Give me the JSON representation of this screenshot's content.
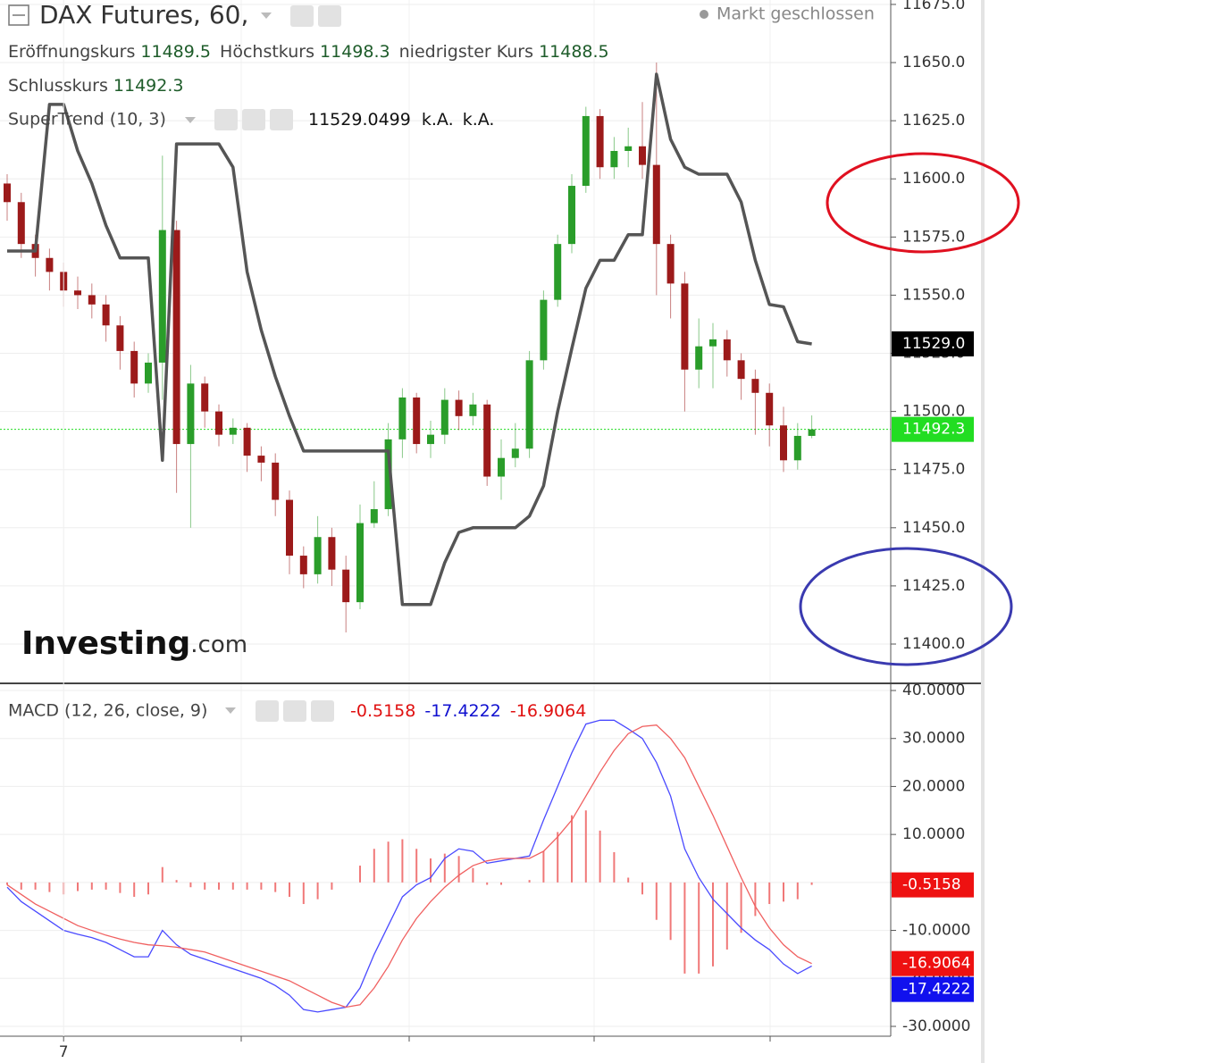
{
  "chart_data": [
    {
      "type": "candlestick",
      "title": "DAX Futures, 60,",
      "status": "Markt geschlossen",
      "ohlc_labels": [
        "Eröffnungskurs",
        "Höchstkurs",
        "niedrigster Kurs",
        "Schlusskurs"
      ],
      "categories": [
        null,
        null,
        null,
        null,
        "7",
        null,
        null,
        null,
        null,
        null,
        null,
        null,
        null,
        null,
        null,
        null,
        null,
        null,
        null,
        null,
        null,
        null,
        null,
        null,
        null,
        null,
        null,
        null,
        null,
        null,
        null,
        null,
        null,
        null,
        null,
        null,
        null,
        null,
        null,
        null,
        null,
        null,
        null,
        null,
        null,
        null,
        null,
        null,
        null,
        null,
        null,
        null,
        null,
        null,
        null,
        null,
        null,
        null
      ],
      "open": [
        11598,
        11590,
        11572,
        11566,
        11560,
        11552,
        11550,
        11546,
        11537,
        11526,
        11512,
        11521,
        11578,
        11486,
        11512,
        11500,
        11490,
        11493,
        11481,
        11478,
        11462,
        11438,
        11430,
        11446,
        11432,
        11418,
        11452,
        11458,
        11488,
        11506,
        11486,
        11490,
        11505,
        11498,
        11503,
        11472,
        11480,
        11484,
        11522,
        11548,
        11572,
        11597,
        11627,
        11605,
        11612,
        11614,
        11606,
        11572,
        11555,
        11518,
        11528,
        11531,
        11522,
        11514,
        11508,
        11494,
        11479,
        11489.5
      ],
      "high": [
        11602,
        11594,
        11576,
        11570,
        11564,
        11558,
        11555,
        11550,
        11541,
        11530,
        11525,
        11610,
        11582,
        11520,
        11515,
        11503,
        11497,
        11495,
        11485,
        11482,
        11466,
        11442,
        11455,
        11450,
        11438,
        11460,
        11470,
        11495,
        11510,
        11508,
        11496,
        11510,
        11509,
        11508,
        11505,
        11488,
        11495,
        11526,
        11552,
        11576,
        11602,
        11631,
        11630,
        11618,
        11622,
        11633,
        11650,
        11576,
        11560,
        11540,
        11538,
        11535,
        11525,
        11518,
        11512,
        11502,
        11495,
        11498.3
      ],
      "low": [
        11582,
        11566,
        11558,
        11552,
        11545,
        11544,
        11540,
        11530,
        11518,
        11506,
        11508,
        11505,
        11465,
        11450,
        11493,
        11485,
        11486,
        11474,
        11470,
        11455,
        11430,
        11424,
        11426,
        11425,
        11405,
        11415,
        11450,
        11455,
        11480,
        11482,
        11480,
        11486,
        11492,
        11494,
        11468,
        11462,
        11476,
        11480,
        11518,
        11545,
        11568,
        11594,
        11600,
        11600,
        11605,
        11600,
        11550,
        11540,
        11500,
        11510,
        11510,
        11515,
        11505,
        11490,
        11485,
        11474,
        11475,
        11488.5
      ],
      "close": [
        11590,
        11572,
        11566,
        11560,
        11552,
        11550,
        11546,
        11537,
        11526,
        11512,
        11521,
        11578,
        11486,
        11512,
        11500,
        11490,
        11493,
        11481,
        11478,
        11462,
        11438,
        11430,
        11446,
        11432,
        11418,
        11452,
        11458,
        11488,
        11506,
        11486,
        11490,
        11505,
        11498,
        11503,
        11472,
        11480,
        11484,
        11522,
        11548,
        11572,
        11597,
        11627,
        11605,
        11612,
        11614,
        11606,
        11572,
        11555,
        11518,
        11528,
        11531,
        11522,
        11514,
        11508,
        11494,
        11479,
        11489.5,
        11492.3
      ],
      "up_color": "#2a9d2a",
      "down_color": "#9c1a1a",
      "close_line_color": "#22dd22",
      "ylim": [
        11383.1,
        11676.9
      ],
      "yticks": [
        {
          "value": 11400,
          "label": "11400.0"
        },
        {
          "value": 11425,
          "label": "11425.0"
        },
        {
          "value": 11450,
          "label": "11450.0"
        },
        {
          "value": 11475,
          "label": "11475.0"
        },
        {
          "value": 11500,
          "label": "11500.0"
        },
        {
          "value": 11525,
          "label": "11525.0"
        },
        {
          "value": 11550,
          "label": "11550.0"
        },
        {
          "value": 11575,
          "label": "11575.0"
        },
        {
          "value": 11600,
          "label": "11600.0"
        },
        {
          "value": 11625,
          "label": "11625.0"
        },
        {
          "value": 11650,
          "label": "11650.0"
        },
        {
          "value": 11675,
          "label": "11675.0"
        }
      ],
      "grid": true,
      "overlay": {
        "type": "line",
        "name": "SuperTrend (10, 3)",
        "color": "#555555",
        "values": [
          11569,
          11569,
          11569,
          11632,
          11632,
          11612,
          11598,
          11580,
          11566,
          11566,
          11566,
          11479,
          11615,
          11615,
          11615,
          11615,
          11605,
          11560,
          11535,
          11515,
          11498,
          11483,
          11483,
          11483,
          11483,
          11483,
          11483,
          11483,
          11417,
          11417,
          11417,
          11435,
          11448,
          11450,
          11450,
          11450,
          11450,
          11455,
          11468,
          11500,
          11527,
          11553,
          11565,
          11565,
          11576,
          11576,
          11645,
          11617,
          11605,
          11602,
          11602,
          11602,
          11590,
          11565,
          11546,
          11545,
          11530,
          11529.0499
        ],
        "last_label": "11529.0",
        "extra": [
          "k.A.",
          "k.A."
        ]
      },
      "watermark": "Investing",
      "watermark_suffix": ".com"
    },
    {
      "type": "macd",
      "title": "MACD (12, 26, close, 9)",
      "ylim": [
        -32.05,
        41.49
      ],
      "yticks": [
        {
          "value": 40,
          "label": "40.0000"
        },
        {
          "value": 30,
          "label": "30.0000"
        },
        {
          "value": 20,
          "label": "20.0000"
        },
        {
          "value": 10,
          "label": "10.0000"
        },
        {
          "value": 0,
          "label": "0.0000"
        },
        {
          "value": -10,
          "label": "-10.0000"
        },
        {
          "value": -20,
          "label": "-20.0000"
        },
        {
          "value": -30,
          "label": "-30.0000"
        }
      ],
      "grid": true,
      "series": [
        {
          "style": "bars",
          "color": "#f07878",
          "marker_color": "#ee1111",
          "values": [
            -0.5,
            -1.5,
            -1.5,
            -2,
            -2.5,
            -1.8,
            -1.5,
            -1.5,
            -2.2,
            -3,
            -2.5,
            3.2,
            0.5,
            -1,
            -1.5,
            -1.5,
            -1.5,
            -1.5,
            -1.5,
            -2,
            -3,
            -4.5,
            -3.5,
            -1.5,
            0,
            3.5,
            7,
            8.5,
            9,
            7,
            5,
            6,
            5.5,
            3,
            -0.5,
            -0.5,
            0,
            0.5,
            6.5,
            10.5,
            14,
            15,
            10.8,
            6.3,
            1,
            -2.5,
            -7.8,
            -12,
            -19,
            -19,
            -17.5,
            -14,
            -10.5,
            -7,
            -4.5,
            -4,
            -3.5,
            -0.5158
          ]
        },
        {
          "style": "line",
          "color": "#4a4aff",
          "marker_color": "#1111ee",
          "values": [
            -1,
            -4,
            -6,
            -8,
            -10,
            -10.8,
            -11.5,
            -12.5,
            -14,
            -15.5,
            -15.5,
            -10,
            -13,
            -15,
            -16,
            -17,
            -18,
            -19,
            -20,
            -21.5,
            -23.5,
            -26.5,
            -27,
            -26.5,
            -26,
            -22,
            -15,
            -9,
            -3,
            -0.5,
            1,
            5,
            7,
            6.5,
            4,
            4.5,
            5,
            5.5,
            13,
            20,
            27,
            33,
            33.8,
            33.8,
            32,
            30,
            25,
            18,
            7,
            1,
            -3.5,
            -6.5,
            -9.5,
            -12,
            -14,
            -17,
            -19,
            -17.4222
          ]
        },
        {
          "style": "line",
          "color": "#f06060",
          "marker_color": "#ee1111",
          "values": [
            -0.5,
            -2.5,
            -4.5,
            -6,
            -7.5,
            -9,
            -10,
            -11,
            -11.8,
            -12.5,
            -13,
            -13.2,
            -13.5,
            -14,
            -14.5,
            -15.5,
            -16.5,
            -17.5,
            -18.5,
            -19.5,
            -20.5,
            -22,
            -23.5,
            -25,
            -26,
            -25.5,
            -22,
            -17.5,
            -12,
            -7.5,
            -4,
            -1,
            1.5,
            3.5,
            4.5,
            5,
            5,
            5,
            6.5,
            9.5,
            13,
            18,
            23,
            27.5,
            31,
            32.5,
            32.8,
            30,
            26,
            20,
            14,
            7.5,
            1,
            -5,
            -9.5,
            -13,
            -15.5,
            -16.9064
          ]
        }
      ]
    }
  ]
}
